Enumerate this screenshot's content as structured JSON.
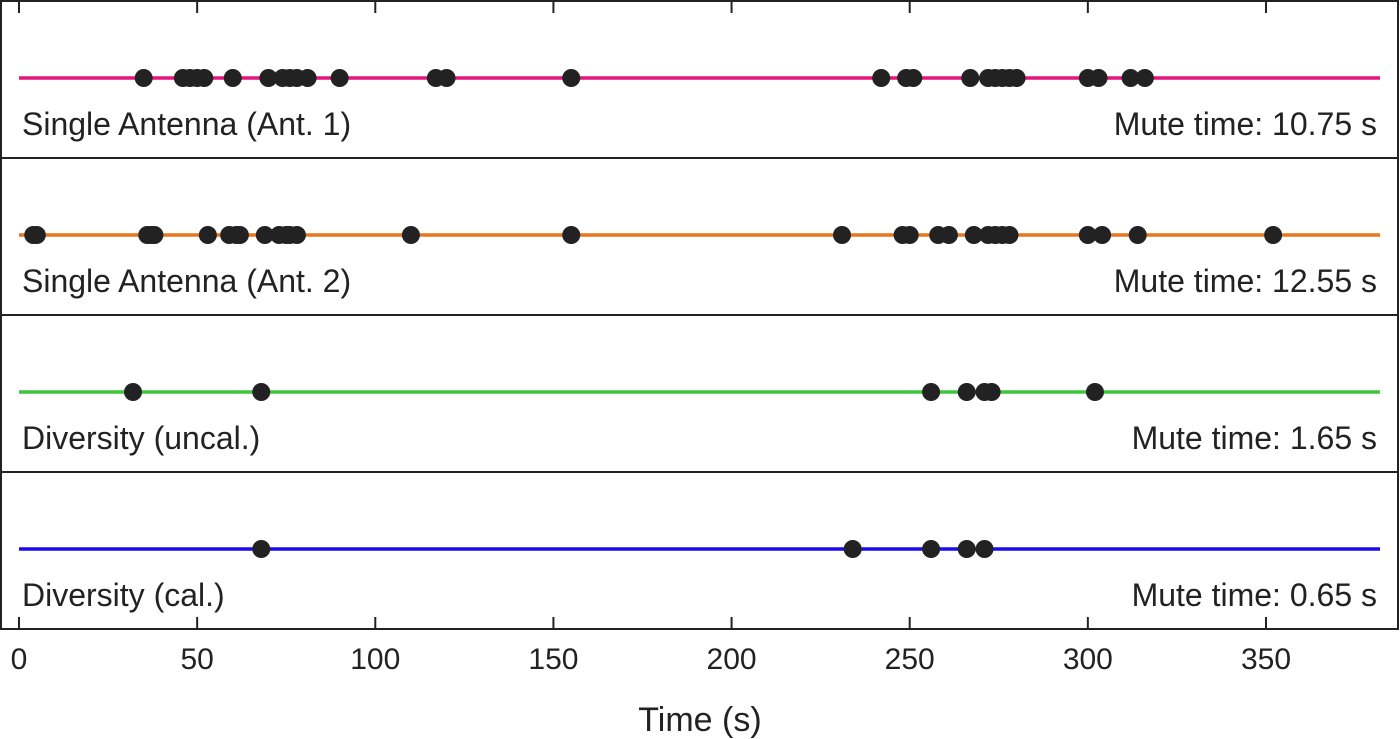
{
  "chart_data": {
    "type": "scatter",
    "xlabel": "Time (s)",
    "xlim": [
      0,
      382
    ],
    "x_ticks": [
      0,
      50,
      100,
      150,
      200,
      250,
      300,
      350
    ],
    "panels": [
      {
        "label": "Single Antenna (Ant. 1)",
        "mute_text": "Mute time: 10.75 s",
        "color": "#e6147f",
        "events": [
          35,
          46,
          48,
          50,
          52,
          60,
          70,
          74,
          76,
          78,
          81,
          90,
          117,
          120,
          155,
          242,
          249,
          251,
          267,
          272,
          274,
          276,
          278,
          280,
          300,
          303,
          312,
          316
        ]
      },
      {
        "label": "Single Antenna (Ant. 2)",
        "mute_text": "Mute time: 12.55 s",
        "color": "#e8761f",
        "events": [
          4,
          5,
          36,
          37,
          38,
          53,
          59,
          61,
          62,
          69,
          73,
          75,
          76,
          78,
          110,
          155,
          231,
          248,
          250,
          258,
          261,
          268,
          272,
          274,
          276,
          278,
          300,
          304,
          314,
          352
        ]
      },
      {
        "label": "Diversity (uncal.)",
        "mute_text": "Mute time: 1.65 s",
        "color": "#3ec43e",
        "events": [
          32,
          68,
          256,
          266,
          271,
          273,
          302
        ]
      },
      {
        "label": "Diversity (cal.)",
        "mute_text": "Mute time: 0.65 s",
        "color": "#1a0cf0",
        "events": [
          68,
          234,
          256,
          266,
          271
        ]
      }
    ]
  }
}
